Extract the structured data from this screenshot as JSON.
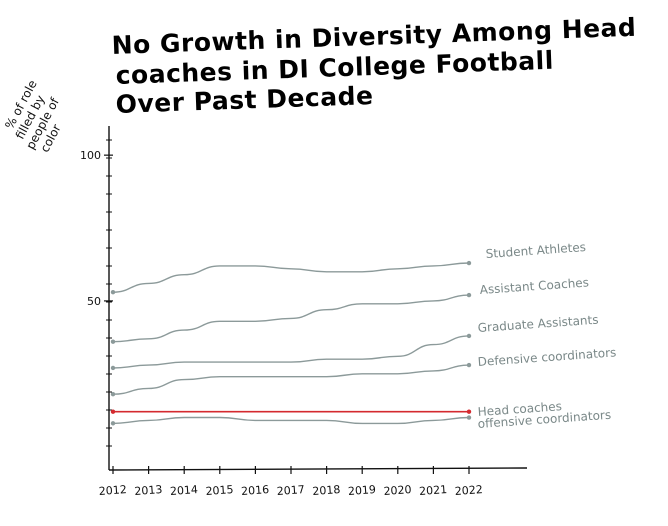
{
  "chart_data": {
    "type": "line",
    "title_lines": [
      "No Growth in Diversity Among Head",
      "coaches  in  DI College Football",
      "Over Past Decade"
    ],
    "ylabel_lines": [
      "% of role",
      "filled by",
      "people of",
      "color"
    ],
    "x": [
      2012,
      2013,
      2014,
      2015,
      2016,
      2017,
      2018,
      2019,
      2020,
      2021,
      2022
    ],
    "xticks": [
      "2012",
      "2013",
      "2014",
      "2015",
      "2016",
      "2017",
      "2018",
      "2019",
      "2020",
      "2021",
      "2022"
    ],
    "yticks": [
      {
        "value": 100,
        "label": "100"
      },
      {
        "value": 50,
        "label": "50"
      }
    ],
    "ylim": [
      -8,
      110
    ],
    "grid": false,
    "legend": "none",
    "series": [
      {
        "name": "Student Athletes",
        "color": "#8c9a9a",
        "values": [
          53,
          56,
          59,
          62,
          62,
          61,
          60,
          60,
          61,
          62,
          63
        ]
      },
      {
        "name": "Assistant Coaches",
        "color": "#8c9a9a",
        "values": [
          36,
          37,
          40,
          43,
          43,
          44,
          47,
          49,
          49,
          50,
          52
        ]
      },
      {
        "name": "Graduate Assistants",
        "color": "#8c9a9a",
        "values": [
          27,
          28,
          29,
          29,
          29,
          29,
          30,
          30,
          31,
          35,
          38
        ]
      },
      {
        "name": "Defensive coordinators",
        "color": "#8c9a9a",
        "values": [
          18,
          20,
          23,
          24,
          24,
          24,
          24,
          25,
          25,
          26,
          28
        ]
      },
      {
        "name": "Head coaches",
        "color": "#d42a2f",
        "values": [
          12,
          12,
          12,
          12,
          12,
          12,
          12,
          12,
          12,
          12,
          12
        ]
      },
      {
        "name": "offensive coordinators",
        "color": "#8c9a9a",
        "values": [
          8,
          9,
          10,
          10,
          9,
          9,
          9,
          8,
          8,
          9,
          10
        ]
      }
    ]
  }
}
